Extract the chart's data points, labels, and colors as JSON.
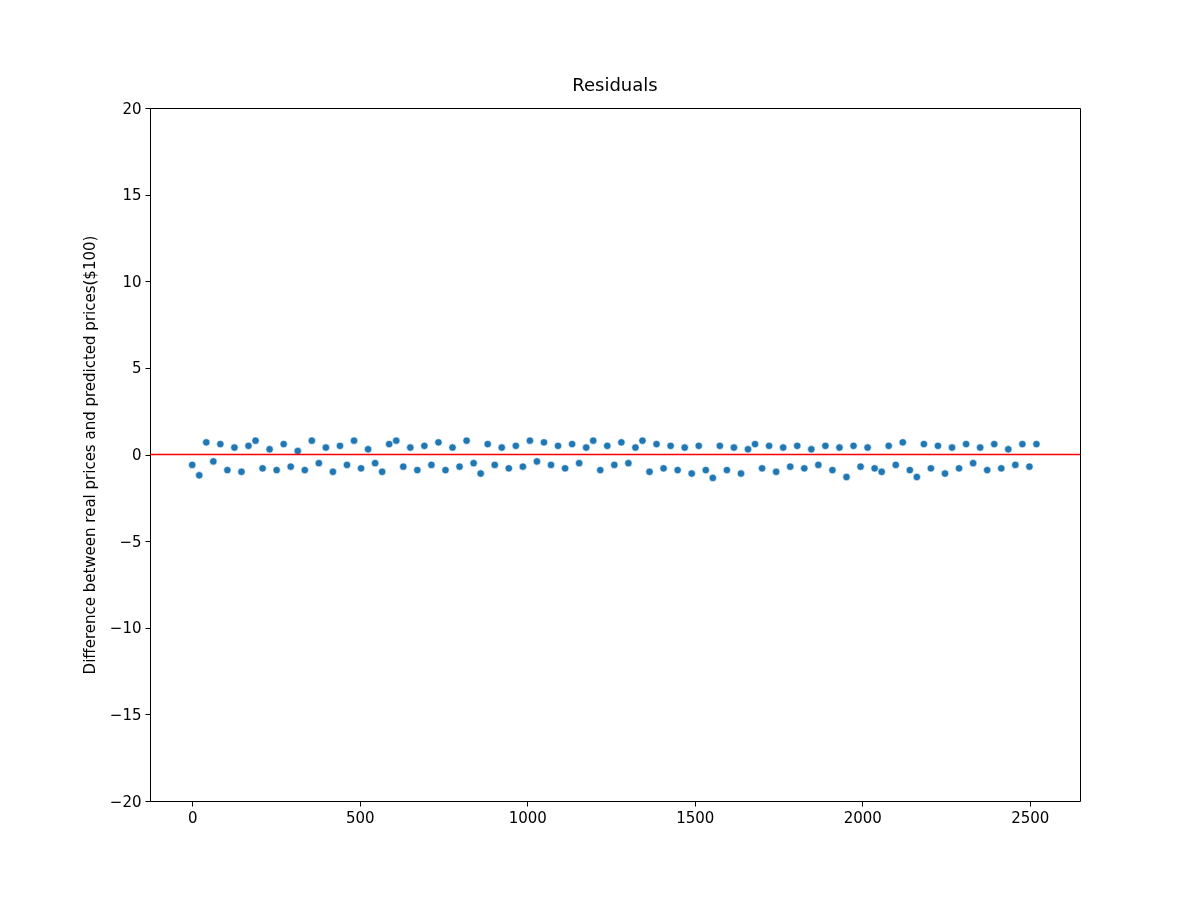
{
  "chart_data": {
    "type": "scatter",
    "title": "Residuals",
    "ylabel": "Difference between real prices and predicted prices($100)",
    "x": [
      0,
      21,
      42,
      63,
      84,
      105,
      126,
      147,
      168,
      189,
      210,
      231,
      252,
      273,
      294,
      315,
      336,
      357,
      378,
      399,
      420,
      441,
      462,
      483,
      504,
      525,
      546,
      567,
      588,
      609,
      630,
      651,
      672,
      693,
      714,
      735,
      756,
      777,
      798,
      819,
      840,
      861,
      882,
      903,
      924,
      945,
      966,
      987,
      1008,
      1029,
      1050,
      1071,
      1092,
      1113,
      1134,
      1155,
      1176,
      1197,
      1218,
      1239,
      1260,
      1281,
      1302,
      1323,
      1344,
      1365,
      1386,
      1407,
      1428,
      1449,
      1470,
      1491,
      1512,
      1533,
      1554,
      1575,
      1596,
      1617,
      1638,
      1659,
      1680,
      1701,
      1722,
      1743,
      1764,
      1785,
      1806,
      1827,
      1848,
      1869,
      1890,
      1911,
      1932,
      1953,
      1974,
      1995,
      2016,
      2037,
      2058,
      2079,
      2100,
      2121,
      2142,
      2163,
      2184,
      2205,
      2226,
      2247,
      2268,
      2289,
      2310,
      2331,
      2352,
      2373,
      2394,
      2415,
      2436,
      2457,
      2478,
      2499,
      2520
    ],
    "series": [
      {
        "color": "#1f77b4",
        "values": [
          -0.6,
          -1.2,
          0.7,
          -0.4,
          0.6,
          -0.9,
          0.4,
          -1.0,
          0.5,
          0.8,
          -0.8,
          0.3,
          -0.9,
          0.6,
          -0.7,
          0.2,
          -0.9,
          0.8,
          -0.5,
          0.4,
          -1.0,
          0.5,
          -0.6,
          0.8,
          -0.8,
          0.3,
          -0.5,
          -1.0,
          0.6,
          0.8,
          -0.7,
          0.4,
          -0.9,
          0.5,
          -0.6,
          0.7,
          -0.9,
          0.4,
          -0.7,
          0.8,
          -0.5,
          -1.1,
          0.6,
          -0.6,
          0.4,
          -0.8,
          0.5,
          -0.7,
          0.8,
          -0.4,
          0.7,
          -0.6,
          0.5,
          -0.8,
          0.6,
          -0.5,
          0.4,
          0.8,
          -0.9,
          0.5,
          -0.6,
          0.7,
          -0.5,
          0.4,
          0.8,
          -1.0,
          0.6,
          -0.8,
          0.5,
          -0.9,
          0.4,
          -1.1,
          0.5,
          -0.9,
          -1.35,
          0.5,
          -0.9,
          0.4,
          -1.1,
          0.3,
          0.6,
          -0.8,
          0.5,
          -1.0,
          0.4,
          -0.7,
          0.5,
          -0.8,
          0.3,
          -0.6,
          0.5,
          -0.9,
          0.4,
          -1.3,
          0.5,
          -0.7,
          0.4,
          -0.8,
          -1.0,
          0.5,
          -0.6,
          0.7,
          -0.9,
          -1.3,
          0.6,
          -0.8,
          0.5,
          -1.1,
          0.4,
          -0.8,
          0.6,
          -0.5,
          0.4,
          -0.9,
          0.6,
          -0.8,
          0.3,
          -0.6,
          0.6,
          -0.7,
          0.6
        ]
      }
    ],
    "xlim": [
      -126,
      2650
    ],
    "xticks": [
      0,
      500,
      1000,
      1500,
      2000,
      2500
    ],
    "ylim": [
      -20,
      20
    ],
    "yticks": [
      -20,
      -15,
      -10,
      -5,
      0,
      5,
      10,
      15,
      20
    ],
    "ref_lines": [
      {
        "axis": "y",
        "value": 0,
        "color": "#ff0000"
      }
    ],
    "marker": "circle",
    "grid": false
  }
}
